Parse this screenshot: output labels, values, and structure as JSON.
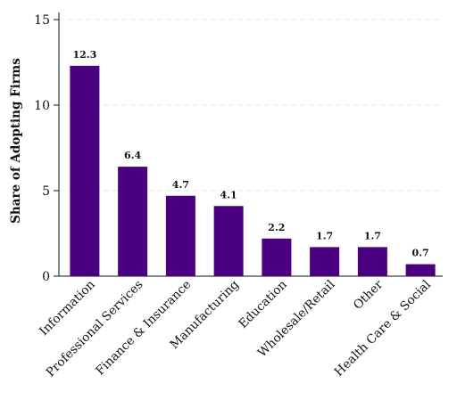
{
  "chart_data": {
    "type": "bar",
    "categories": [
      "Information",
      "Professional Services",
      "Finance & Insurance",
      "Manufacturing",
      "Education",
      "Wholesale/Retail",
      "Other",
      "Health Care & Social"
    ],
    "values": [
      12.3,
      6.4,
      4.7,
      4.1,
      2.2,
      1.7,
      1.7,
      0.7
    ],
    "data_labels": [
      "12.3",
      "6.4",
      "4.7",
      "4.1",
      "2.2",
      "1.7",
      "1.7",
      "0.7"
    ],
    "title": "",
    "xlabel": "",
    "ylabel": "Share of Adopting Firms",
    "ylim": [
      0,
      15
    ],
    "yticks": [
      0,
      5,
      10,
      15
    ],
    "grid": true,
    "bar_color": "#4b0082",
    "grid_color": "#e6e6e6"
  }
}
